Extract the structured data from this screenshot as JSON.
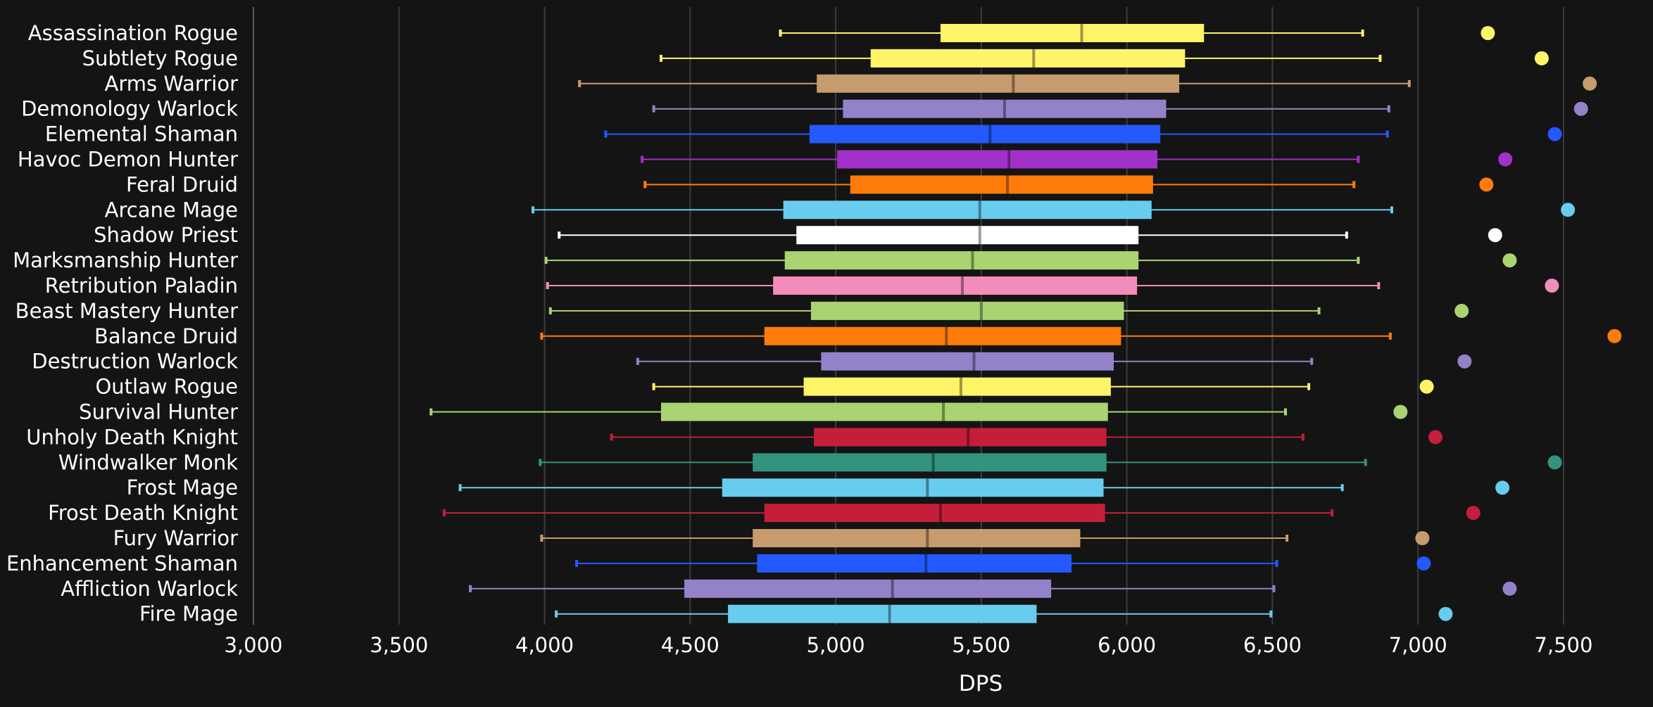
{
  "chart_data": {
    "type": "boxplot",
    "xlabel": "DPS",
    "xlim": [
      3000,
      7800
    ],
    "xticks": [
      {
        "value": 3000,
        "label": "3,000"
      },
      {
        "value": 3500,
        "label": "3,500"
      },
      {
        "value": 4000,
        "label": "4,000"
      },
      {
        "value": 4500,
        "label": "4,500"
      },
      {
        "value": 5000,
        "label": "5,000"
      },
      {
        "value": 5500,
        "label": "5,500"
      },
      {
        "value": 6000,
        "label": "6,000"
      },
      {
        "value": 6500,
        "label": "6,500"
      },
      {
        "value": 7000,
        "label": "7,000"
      },
      {
        "value": 7500,
        "label": "7,500"
      }
    ],
    "grid": "vertical",
    "series": [
      {
        "name": "Assassination Rogue",
        "color": "#fff468",
        "min": 4810,
        "q1": 5360,
        "median": 5845,
        "q3": 6265,
        "max": 6810,
        "point": 7240
      },
      {
        "name": "Subtlety Rogue",
        "color": "#fff468",
        "min": 4400,
        "q1": 5120,
        "median": 5680,
        "q3": 6200,
        "max": 6870,
        "point": 7425
      },
      {
        "name": "Arms Warrior",
        "color": "#c69b6d",
        "min": 4120,
        "q1": 4935,
        "median": 5610,
        "q3": 6180,
        "max": 6970,
        "point": 7590
      },
      {
        "name": "Demonology Warlock",
        "color": "#9482c9",
        "min": 4375,
        "q1": 5025,
        "median": 5580,
        "q3": 6135,
        "max": 6900,
        "point": 7560
      },
      {
        "name": "Elemental Shaman",
        "color": "#2459ff",
        "min": 4210,
        "q1": 4910,
        "median": 5530,
        "q3": 6115,
        "max": 6895,
        "point": 7470
      },
      {
        "name": "Havoc Demon Hunter",
        "color": "#a330c9",
        "min": 4335,
        "q1": 5005,
        "median": 5595,
        "q3": 6105,
        "max": 6795,
        "point": 7300
      },
      {
        "name": "Feral Druid",
        "color": "#ff7c0a",
        "min": 4345,
        "q1": 5050,
        "median": 5590,
        "q3": 6090,
        "max": 6780,
        "point": 7235
      },
      {
        "name": "Arcane Mage",
        "color": "#68ccef",
        "min": 3960,
        "q1": 4820,
        "median": 5495,
        "q3": 6085,
        "max": 6910,
        "point": 7515
      },
      {
        "name": "Shadow Priest",
        "color": "#ffffff",
        "min": 4050,
        "q1": 4865,
        "median": 5495,
        "q3": 6040,
        "max": 6755,
        "point": 7265
      },
      {
        "name": "Marksmanship Hunter",
        "color": "#aad372",
        "min": 4005,
        "q1": 4825,
        "median": 5470,
        "q3": 6040,
        "max": 6795,
        "point": 7315
      },
      {
        "name": "Retribution Paladin",
        "color": "#f48cba",
        "min": 4010,
        "q1": 4785,
        "median": 5435,
        "q3": 6035,
        "max": 6865,
        "point": 7460
      },
      {
        "name": "Beast Mastery Hunter",
        "color": "#aad372",
        "min": 4020,
        "q1": 4915,
        "median": 5500,
        "q3": 5990,
        "max": 6660,
        "point": 7150
      },
      {
        "name": "Balance Druid",
        "color": "#ff7c0a",
        "min": 3990,
        "q1": 4755,
        "median": 5380,
        "q3": 5980,
        "max": 6905,
        "point": 7675
      },
      {
        "name": "Destruction Warlock",
        "color": "#9482c9",
        "min": 4320,
        "q1": 4950,
        "median": 5475,
        "q3": 5955,
        "max": 6635,
        "point": 7160
      },
      {
        "name": "Outlaw Rogue",
        "color": "#fff468",
        "min": 4375,
        "q1": 4890,
        "median": 5430,
        "q3": 5945,
        "max": 6625,
        "point": 7030
      },
      {
        "name": "Survival Hunter",
        "color": "#aad372",
        "min": 3610,
        "q1": 4400,
        "median": 5370,
        "q3": 5935,
        "max": 6545,
        "point": 6940
      },
      {
        "name": "Unholy Death Knight",
        "color": "#c41e3a",
        "min": 4230,
        "q1": 4925,
        "median": 5455,
        "q3": 5930,
        "max": 6605,
        "point": 7060
      },
      {
        "name": "Windwalker Monk",
        "color": "#33937f",
        "min": 3985,
        "q1": 4715,
        "median": 5335,
        "q3": 5930,
        "max": 6820,
        "point": 7470
      },
      {
        "name": "Frost Mage",
        "color": "#68ccef",
        "min": 3710,
        "q1": 4610,
        "median": 5315,
        "q3": 5920,
        "max": 6740,
        "point": 7290
      },
      {
        "name": "Frost Death Knight",
        "color": "#c41e3a",
        "min": 3655,
        "q1": 4755,
        "median": 5360,
        "q3": 5925,
        "max": 6705,
        "point": 7190
      },
      {
        "name": "Fury Warrior",
        "color": "#c69b6d",
        "min": 3990,
        "q1": 4715,
        "median": 5315,
        "q3": 5840,
        "max": 6550,
        "point": 7015
      },
      {
        "name": "Enhancement Shaman",
        "color": "#2459ff",
        "min": 4110,
        "q1": 4730,
        "median": 5310,
        "q3": 5810,
        "max": 6515,
        "point": 7020
      },
      {
        "name": "Affliction Warlock",
        "color": "#9482c9",
        "min": 3745,
        "q1": 4480,
        "median": 5195,
        "q3": 5740,
        "max": 6505,
        "point": 7315
      },
      {
        "name": "Fire Mage",
        "color": "#68ccef",
        "min": 4040,
        "q1": 4630,
        "median": 5185,
        "q3": 5690,
        "max": 6495,
        "point": 7095
      }
    ]
  }
}
